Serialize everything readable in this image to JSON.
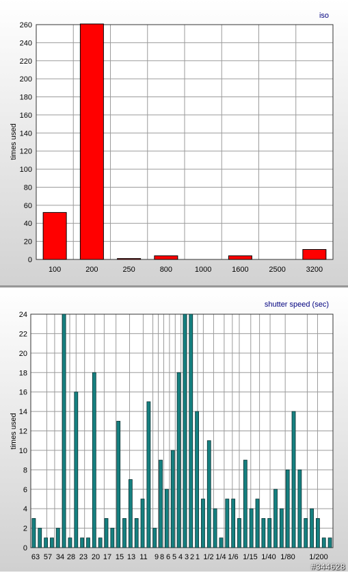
{
  "colors": {
    "iso_bar": "#ff0000",
    "shutter_bar": "#168080",
    "grid": "#9a9a9a",
    "title_text": "#00007f"
  },
  "chart_data": [
    {
      "type": "bar",
      "title": "iso",
      "xlabel": "",
      "ylabel": "times used",
      "categories": [
        "100",
        "200",
        "250",
        "800",
        "1000",
        "1600",
        "2500",
        "3200"
      ],
      "values": [
        52,
        262,
        1,
        4,
        0,
        4,
        0,
        11
      ],
      "ylim": [
        0,
        260
      ],
      "yticks": [
        0,
        20,
        40,
        60,
        80,
        100,
        120,
        140,
        160,
        180,
        200,
        220,
        240,
        260
      ],
      "grid": true,
      "legend": "none"
    },
    {
      "type": "bar",
      "title": "shutter speed (sec)",
      "xlabel": "",
      "ylabel": "times used",
      "tick_labels": [
        "63",
        "57",
        "34",
        "28",
        "23",
        "20",
        "17",
        "15",
        "13",
        "11",
        "9",
        "8",
        "6",
        "5",
        "4",
        "3",
        "2",
        "1",
        "1/2",
        "1/4",
        "1/6",
        "1/15",
        "1/40",
        "1/80",
        "1/200"
      ],
      "values": [
        3,
        2,
        1,
        1,
        2,
        24,
        1,
        16,
        1,
        1,
        18,
        1,
        3,
        2,
        13,
        3,
        7,
        3,
        5,
        15,
        2,
        9,
        6,
        10,
        18,
        24,
        24,
        14,
        5,
        11,
        4,
        1,
        5,
        5,
        3,
        9,
        4,
        5,
        3,
        3,
        6,
        4,
        8,
        14,
        8,
        3,
        4,
        3,
        1,
        1
      ],
      "ylim": [
        0,
        24
      ],
      "yticks": [
        0,
        2,
        4,
        6,
        8,
        10,
        12,
        14,
        16,
        18,
        20,
        22,
        24
      ],
      "grid": true,
      "legend": "none"
    }
  ],
  "watermark": "#344628"
}
